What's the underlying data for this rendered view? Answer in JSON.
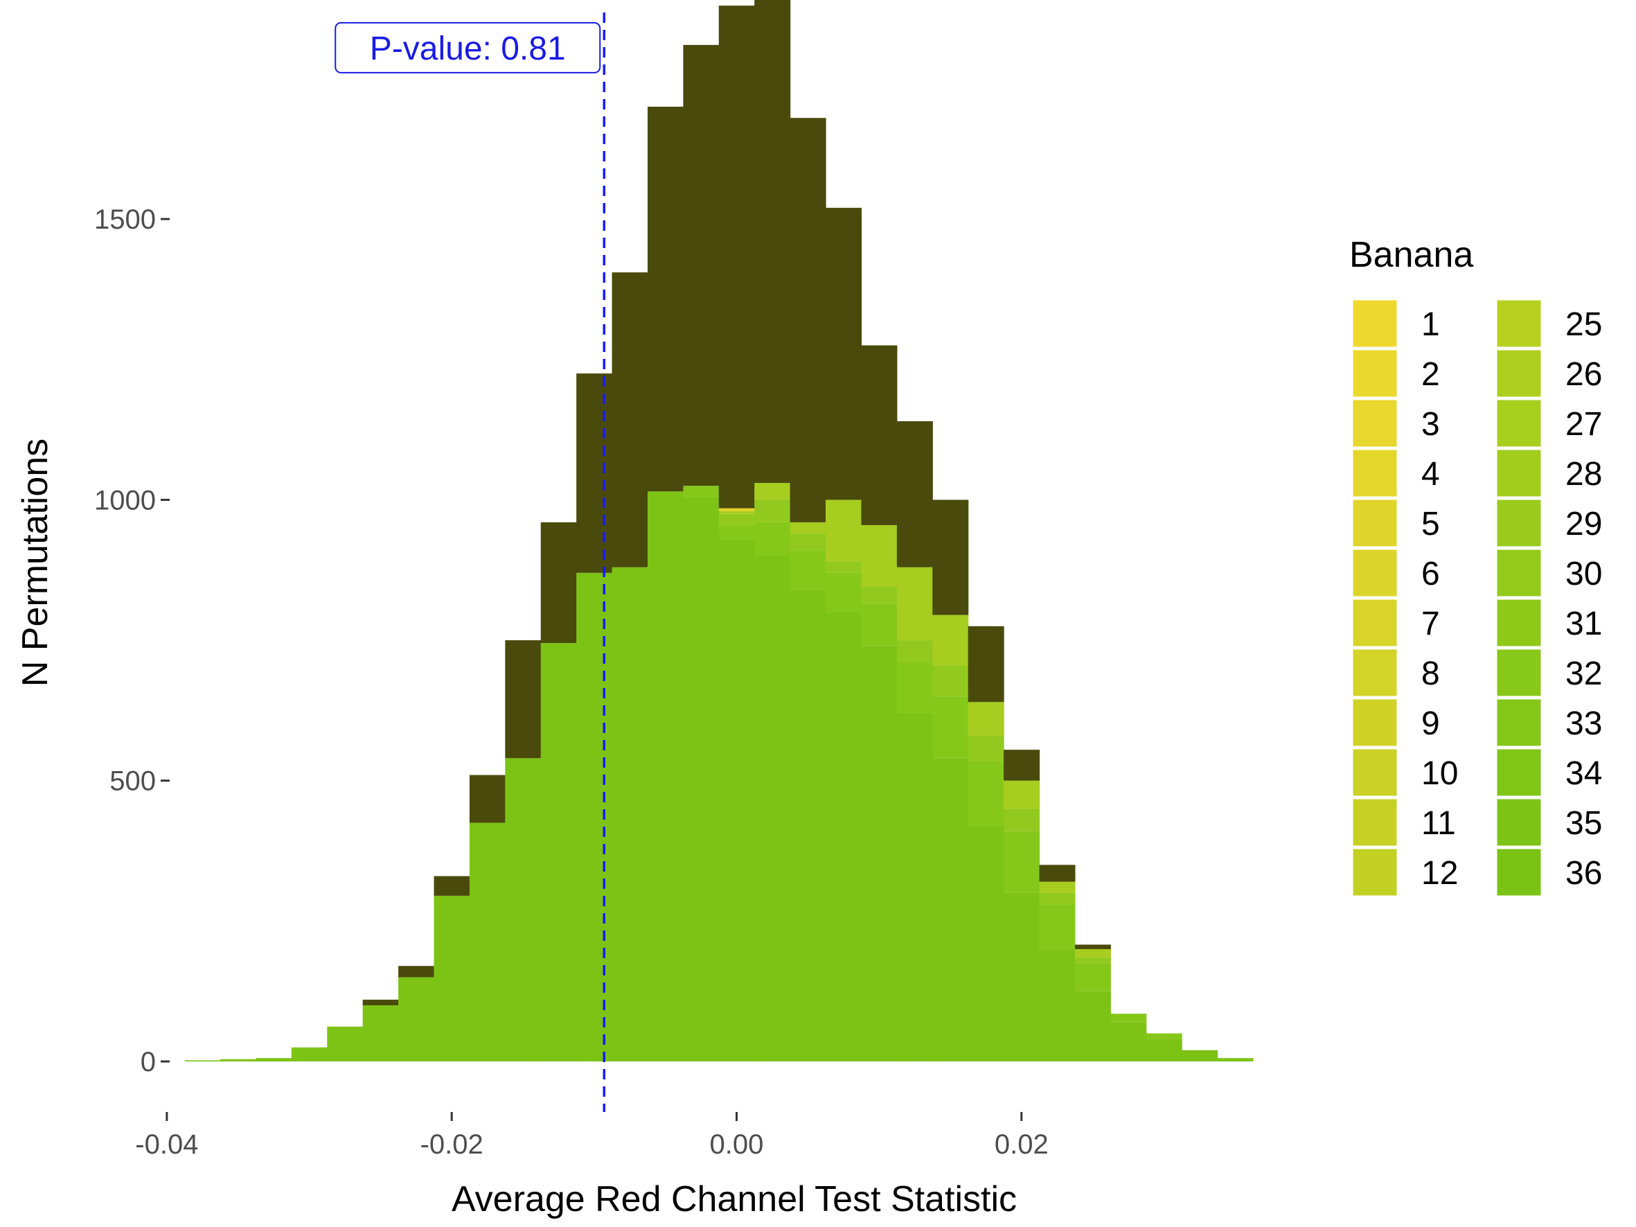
{
  "chart_data": {
    "type": "bar",
    "subtype": "stacked-histogram",
    "xlabel": "Average Red Channel Test Statistic",
    "ylabel": "N Permutations",
    "xlim": [
      -0.0398,
      0.0363
    ],
    "ylim": [
      -90,
      1890
    ],
    "grid": false,
    "x_ticks": [
      -0.04,
      -0.02,
      0.0,
      0.02
    ],
    "x_tick_labels": [
      "-0.04",
      "-0.02",
      "0.00",
      "0.02"
    ],
    "y_ticks": [
      0,
      500,
      1000,
      1500
    ],
    "y_tick_labels": [
      "0",
      "500",
      "1000",
      "1500"
    ],
    "bin_width": 0.0025,
    "bin_centers": [
      -0.0375,
      -0.035,
      -0.0325,
      -0.03,
      -0.0275,
      -0.025,
      -0.0225,
      -0.02,
      -0.0175,
      -0.015,
      -0.0125,
      -0.01,
      -0.0075,
      -0.005,
      -0.0025,
      0.0,
      0.0025,
      0.005,
      0.0075,
      0.01,
      0.0125,
      0.015,
      0.0175,
      0.02,
      0.0225,
      0.025,
      0.0275,
      0.03,
      0.0325,
      0.035
    ],
    "series": [
      {
        "name": "36",
        "color": "#7dc315",
        "values": [
          2,
          4,
          6,
          25,
          62,
          100,
          150,
          295,
          425,
          540,
          745,
          870,
          880,
          1015,
          1005,
          930,
          900,
          840,
          800,
          740,
          620,
          540,
          420,
          300,
          200,
          125,
          70,
          40,
          20,
          6
        ]
      },
      {
        "name": "33",
        "color": "#86c81a",
        "values": [
          0,
          0,
          0,
          0,
          0,
          0,
          0,
          0,
          0,
          0,
          0,
          0,
          0,
          0,
          20,
          25,
          60,
          70,
          70,
          75,
          90,
          110,
          115,
          110,
          80,
          50,
          15,
          10,
          0,
          0
        ]
      },
      {
        "name": "30",
        "color": "#92c91e",
        "values": [
          0,
          0,
          0,
          0,
          0,
          0,
          0,
          0,
          0,
          0,
          0,
          0,
          0,
          0,
          0,
          20,
          40,
          30,
          20,
          30,
          40,
          55,
          45,
          40,
          20,
          10,
          0,
          0,
          0,
          0
        ]
      },
      {
        "name": "27",
        "color": "#a6cd1f",
        "values": [
          0,
          0,
          0,
          0,
          0,
          0,
          0,
          0,
          0,
          0,
          0,
          0,
          0,
          0,
          0,
          5,
          30,
          20,
          110,
          110,
          130,
          90,
          60,
          50,
          20,
          15,
          0,
          0,
          0,
          0
        ]
      },
      {
        "name": "1",
        "color": "#e8d02a",
        "values": [
          0,
          0,
          0,
          0,
          0,
          0,
          0,
          0,
          0,
          0,
          0,
          0,
          0,
          0,
          0,
          5,
          0,
          0,
          0,
          0,
          0,
          0,
          0,
          0,
          0,
          0,
          0,
          0,
          0,
          0
        ]
      },
      {
        "name": "",
        "color": "#4a4a0c",
        "values": [
          0,
          0,
          0,
          0,
          0,
          10,
          20,
          35,
          85,
          210,
          215,
          355,
          525,
          685,
          785,
          895,
          865,
          720,
          520,
          320,
          260,
          205,
          135,
          55,
          30,
          8,
          0,
          0,
          0,
          0
        ]
      }
    ],
    "annotations": [
      {
        "type": "vline",
        "x": -0.0093,
        "style": "dashed",
        "color": "#1a1aff"
      },
      {
        "type": "label",
        "text": "P-value: 0.81",
        "x": -0.0093,
        "y": 1805,
        "color": "#1a1ae6"
      }
    ],
    "legend": {
      "title": "Banana",
      "placement": "right",
      "columns": [
        [
          {
            "label": "1",
            "color": "#efd92e"
          },
          {
            "label": "2",
            "color": "#ebd82d"
          },
          {
            "label": "3",
            "color": "#e8d72c"
          },
          {
            "label": "4",
            "color": "#e5d62b"
          },
          {
            "label": "5",
            "color": "#e0d52a"
          },
          {
            "label": "6",
            "color": "#dcd529"
          },
          {
            "label": "7",
            "color": "#d8d428"
          },
          {
            "label": "8",
            "color": "#d4d327"
          },
          {
            "label": "9",
            "color": "#d0d226"
          },
          {
            "label": "10",
            "color": "#cbd125"
          },
          {
            "label": "11",
            "color": "#c7d124"
          },
          {
            "label": "12",
            "color": "#c2d023"
          }
        ],
        [
          {
            "label": "25",
            "color": "#b6d020"
          },
          {
            "label": "26",
            "color": "#afcf1f"
          },
          {
            "label": "27",
            "color": "#a8ce1e"
          },
          {
            "label": "28",
            "color": "#a1cd1d"
          },
          {
            "label": "29",
            "color": "#9acb1c"
          },
          {
            "label": "30",
            "color": "#94ca1b"
          },
          {
            "label": "31",
            "color": "#8ec91a"
          },
          {
            "label": "32",
            "color": "#88c819"
          },
          {
            "label": "33",
            "color": "#84c718"
          },
          {
            "label": "34",
            "color": "#80c617"
          },
          {
            "label": "35",
            "color": "#7dc416"
          },
          {
            "label": "36",
            "color": "#7ac315"
          }
        ]
      ]
    }
  }
}
